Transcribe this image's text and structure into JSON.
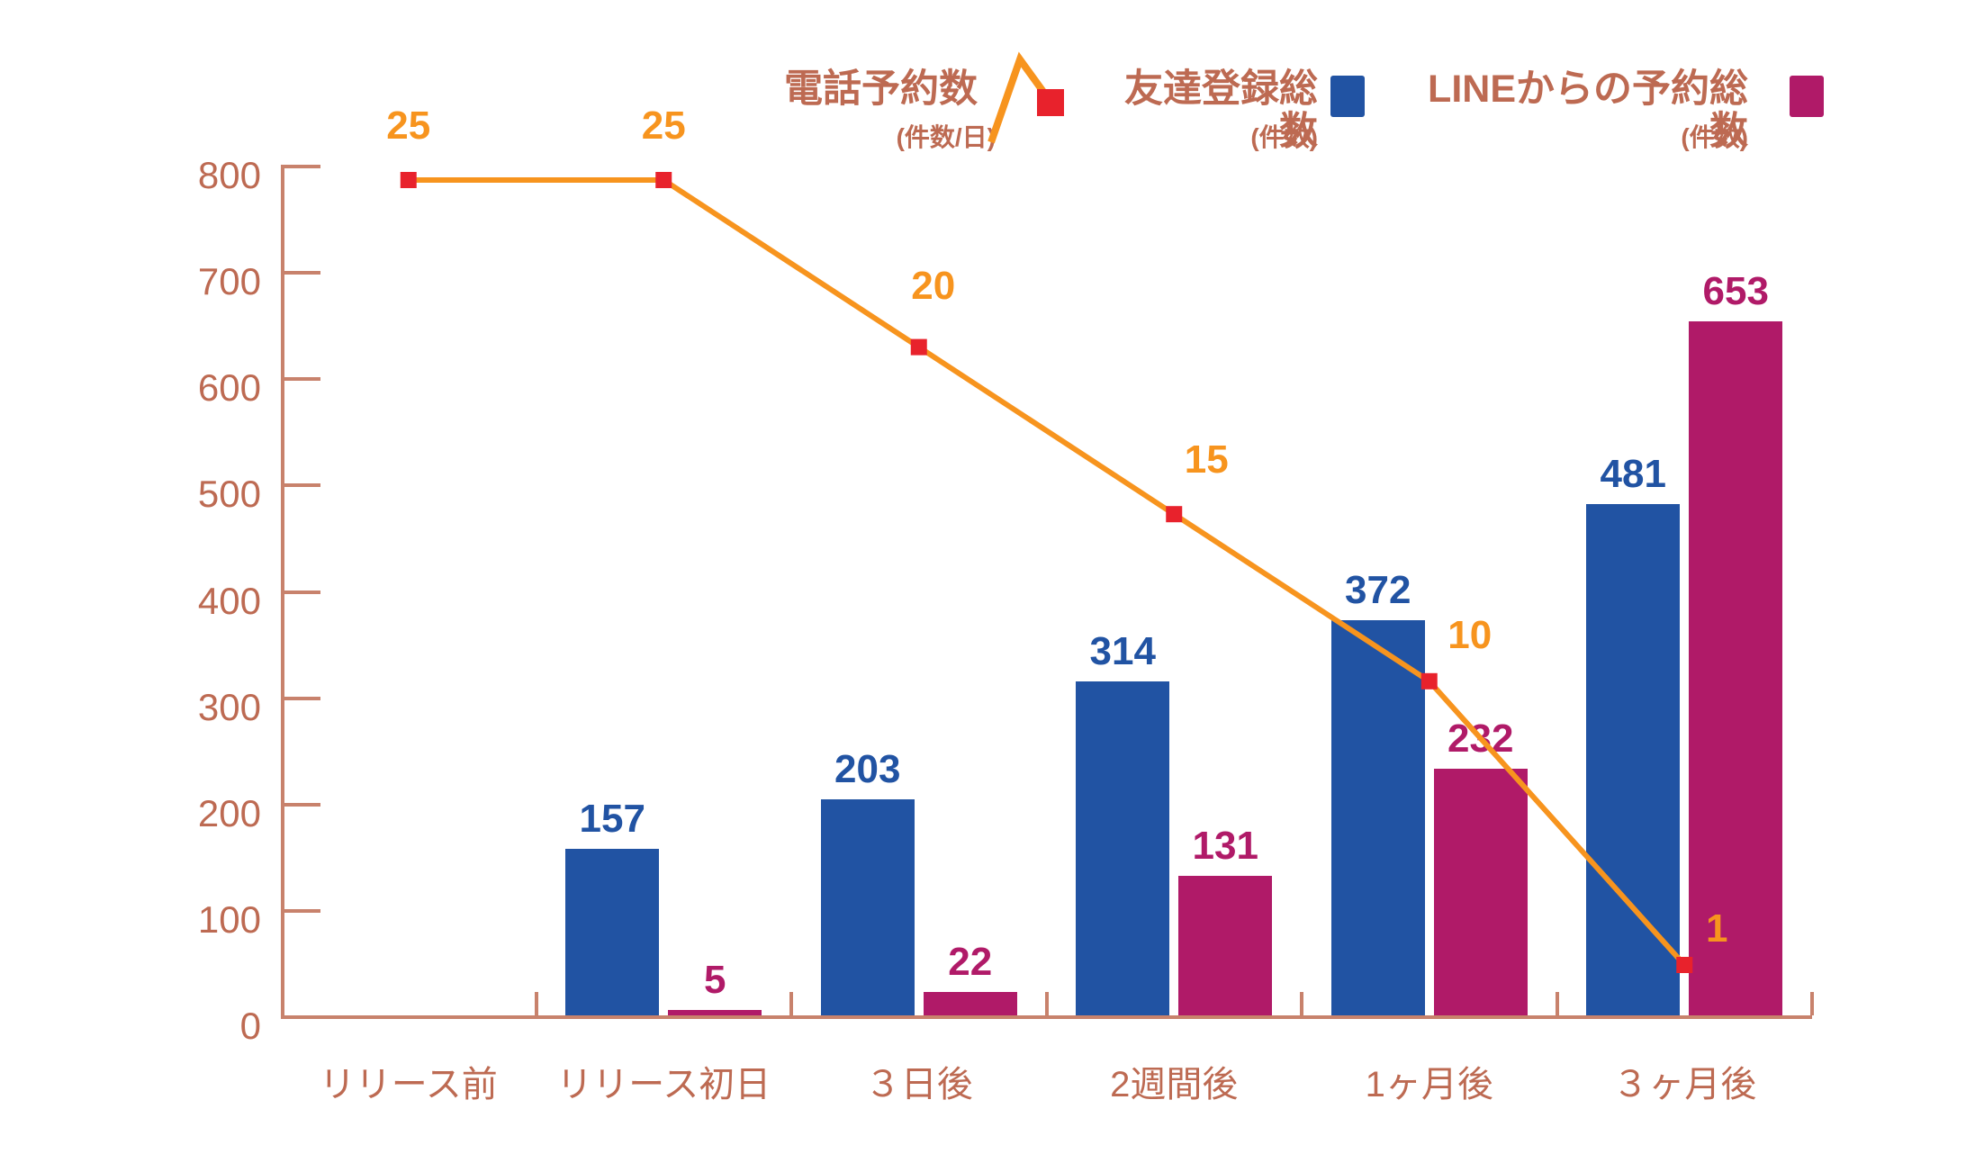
{
  "colors": {
    "background": "#ffffff",
    "bar_blue": "#2153a3",
    "bar_magenta": "#b01a68",
    "line_orange": "#f7941e",
    "marker_red": "#e8222c",
    "axis_line": "#c8826c",
    "axis_text": "#bd6a52"
  },
  "legend": {
    "items": [
      {
        "label": "電話予約数",
        "unit": "(件数/日)",
        "swatch": "line-peak-marker-icon"
      },
      {
        "label": "友達登録総数",
        "unit": "(件数)",
        "swatch": "blue-square"
      },
      {
        "label": "LINEからの予約総数",
        "unit": "(件数)",
        "swatch": "magenta-square"
      }
    ]
  },
  "chart_data": {
    "type": "bar",
    "subtype": "grouped-bars-with-line-overlay",
    "title": "",
    "categories": [
      "リリース前",
      "リリース初日",
      "３日後",
      "2週間後",
      "1ヶ月後",
      "３ヶ月後"
    ],
    "series": [
      {
        "name": "友達登録総数",
        "type": "bar",
        "color": "#2153a3",
        "values": [
          null,
          157,
          203,
          314,
          372,
          481
        ]
      },
      {
        "name": "LINEからの予約総数",
        "type": "bar",
        "color": "#b01a68",
        "values": [
          null,
          5,
          22,
          131,
          232,
          653
        ]
      },
      {
        "name": "電話予約数",
        "type": "line",
        "color": "#f7941e",
        "marker_color": "#e8222c",
        "values": [
          25,
          25,
          20,
          15,
          10,
          1
        ]
      }
    ],
    "y_axis": {
      "min": 0,
      "max": 800,
      "ticks": [
        0,
        100,
        200,
        300,
        400,
        500,
        600,
        700,
        800
      ]
    },
    "secondary_axis": {
      "min": 0,
      "max": 25
    },
    "grid": false,
    "legend_position": "top"
  }
}
